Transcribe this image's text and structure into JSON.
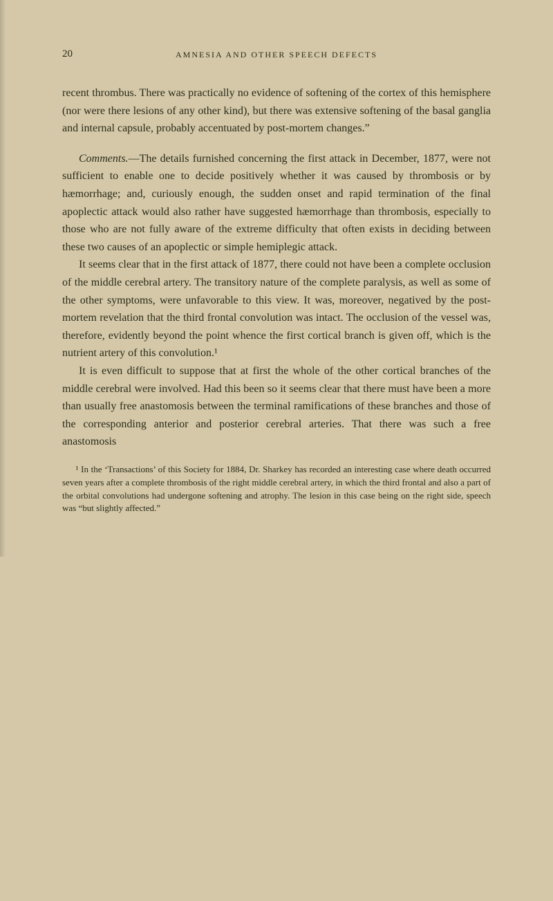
{
  "page_number": "20",
  "running_header": "AMNESIA AND OTHER SPEECH DEFECTS",
  "paragraphs": {
    "p1": "recent thrombus. There was practically no evidence of softening of the cortex of this hemisphere (nor were there lesions of any other kind), but there was extensive softening of the basal ganglia and internal capsule, probably accentuated by post-mortem changes.”",
    "p2_lead": "Comments.",
    "p2_body": "—The details furnished concerning the first attack in December, 1877, were not sufficient to enable one to decide positively whether it was caused by thrombosis or by hæmorrhage; and, curiously enough, the sudden onset and rapid termination of the final apoplectic attack would also rather have suggested hæmorrhage than thrombosis, especially to those who are not fully aware of the extreme difficulty that often exists in deciding between these two causes of an apoplectic or simple hemiplegic attack.",
    "p3": "It seems clear that in the first attack of 1877, there could not have been a complete occlusion of the middle cerebral artery. The transitory nature of the complete paralysis, as well as some of the other symptoms, were unfavorable to this view. It was, moreover, negatived by the post-mortem revelation that the third frontal convolution was intact. The occlusion of the vessel was, therefore, evidently beyond the point whence the first cortical branch is given off, which is the nutrient artery of this convolution.¹",
    "p4": "It is even difficult to suppose that at first the whole of the other cortical branches of the middle cerebral were involved. Had this been so it seems clear that there must have been a more than usually free anastomosis between the terminal ramifications of these branches and those of the corresponding anterior and posterior cerebral arteries. That there was such a free anastomosis"
  },
  "footnote": {
    "marker": "¹",
    "text": " In the ‘Transactions’ of this Society for 1884, Dr. Sharkey has recorded an interesting case where death occurred seven years after a complete thrombosis of the right middle cerebral artery, in which the third frontal and also a part of the orbital convolutions had undergone softening and atrophy. The lesion in this case being on the right side, speech was “but slightly affected.”"
  },
  "colors": {
    "background": "#d4c8a8",
    "text": "#2a2a1a"
  },
  "typography": {
    "body_fontsize": 16,
    "header_fontsize": 12,
    "footnote_fontsize": 13,
    "font_family": "Georgia, 'Times New Roman', serif"
  }
}
